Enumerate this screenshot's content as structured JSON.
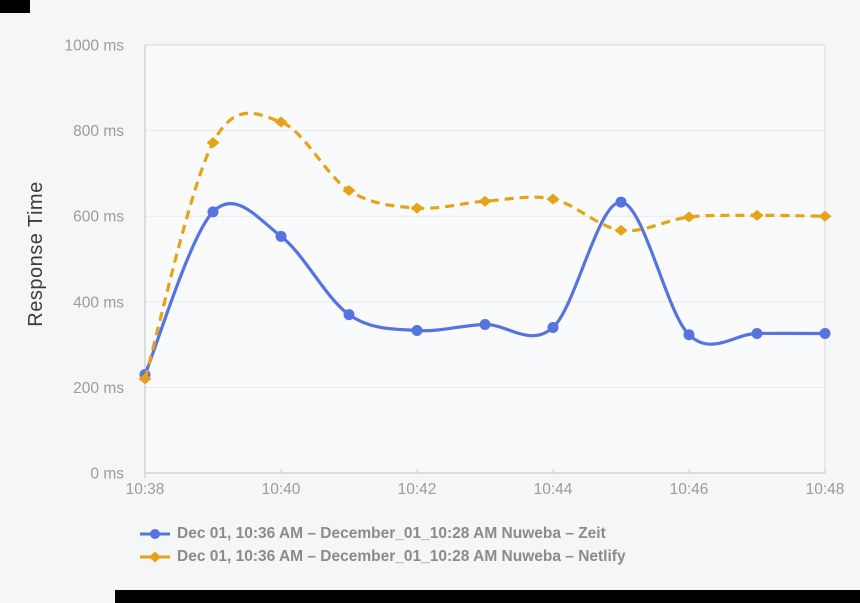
{
  "page": {
    "background_color": "#f5f6f6",
    "plot_background_color": "#f9fafb",
    "artifact_bar_color": "#000000",
    "tick_label_color": "#9b9b9b",
    "axis_title_color": "#3c3c3c",
    "legend_text_color": "#8b8b8b"
  },
  "chart_data": {
    "type": "line",
    "title": "",
    "xlabel": "",
    "ylabel": "Response Time",
    "y_unit": "ms",
    "ylim": [
      0,
      1000
    ],
    "y_tick_step": 200,
    "y_tick_labels": [
      "0 ms",
      "200 ms",
      "400 ms",
      "600 ms",
      "800 ms",
      "1000 ms"
    ],
    "categories": [
      "10:38",
      "10:39",
      "10:40",
      "10:41",
      "10:42",
      "10:43",
      "10:44",
      "10:45",
      "10:46",
      "10:47",
      "10:48"
    ],
    "x_tick_labels": [
      "10:38",
      "10:40",
      "10:42",
      "10:44",
      "10:46",
      "10:48"
    ],
    "grid": "horizontal",
    "legend_position": "bottom-left",
    "series": [
      {
        "name": "Dec 01, 10:36 AM – December_01_10:28 AM Nuweba – Zeit",
        "color": "#5574e0",
        "marker": "circle",
        "line_style": "solid",
        "values": [
          230,
          610,
          553,
          370,
          333,
          347,
          340,
          633,
          323,
          326,
          326
        ]
      },
      {
        "name": "Dec 01, 10:36 AM – December_01_10:28 AM Nuweba – Netlify",
        "color": "#e7a317",
        "marker": "diamond",
        "line_style": "dashed",
        "values": [
          220,
          772,
          820,
          660,
          619,
          635,
          640,
          567,
          598,
          602,
          600
        ]
      }
    ]
  }
}
